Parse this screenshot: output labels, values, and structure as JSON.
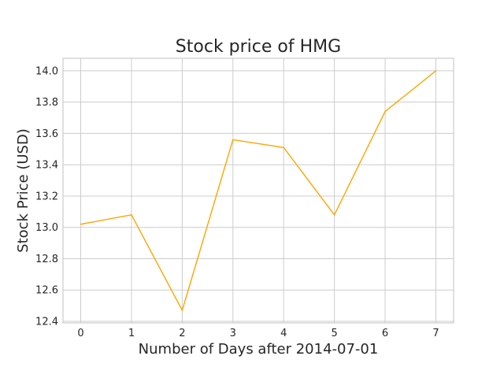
{
  "chart_data": {
    "type": "line",
    "title": "Stock price of HMG",
    "xlabel": "Number of Days after 2014-07-01",
    "ylabel": "Stock Price (USD)",
    "x": [
      0,
      1,
      2,
      3,
      4,
      5,
      6,
      7
    ],
    "series": [
      {
        "values": [
          13.02,
          13.08,
          12.47,
          13.56,
          13.51,
          13.08,
          13.74,
          14.0
        ]
      }
    ],
    "xlim": [
      -0.35,
      7.35
    ],
    "ylim": [
      12.39,
      14.08
    ],
    "xticks": [
      "0",
      "1",
      "2",
      "3",
      "4",
      "5",
      "6",
      "7"
    ],
    "yticks": [
      "12.4",
      "12.6",
      "12.8",
      "13.0",
      "13.2",
      "13.4",
      "13.6",
      "13.8",
      "14.0"
    ],
    "grid": true,
    "line_color": "#ffa500"
  }
}
